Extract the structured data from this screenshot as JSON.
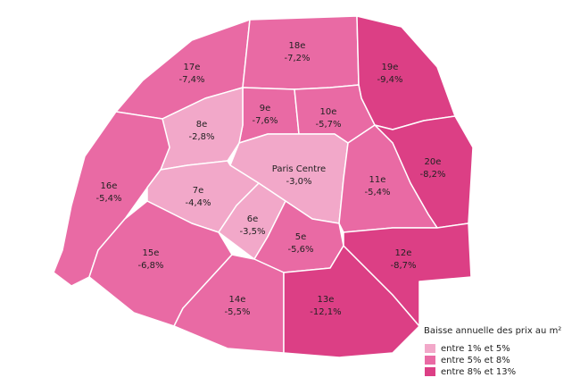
{
  "districts": [
    {
      "name": "17e",
      "change": "-7,4%"
    },
    {
      "name": "18e",
      "change": "-7,2%"
    },
    {
      "name": "19e",
      "change": "-9,4%"
    },
    {
      "name": "20e",
      "change": "-8,2%"
    },
    {
      "name": "9e",
      "change": "-7,6%"
    },
    {
      "name": "10e",
      "change": "-5,7%"
    },
    {
      "name": "8e",
      "change": "-2,8%"
    },
    {
      "name": "Paris Centre",
      "change": "-3,0%"
    },
    {
      "name": "11e",
      "change": "-5,4%"
    },
    {
      "name": "16e",
      "change": "-5,4%"
    },
    {
      "name": "7e",
      "change": "-4,4%"
    },
    {
      "name": "6e",
      "change": "-3,5%"
    },
    {
      "name": "5e",
      "change": "-5,6%"
    },
    {
      "name": "15e",
      "change": "-6,8%"
    },
    {
      "name": "14e",
      "change": "-5,5%"
    },
    {
      "name": "13e",
      "change": "-12,1%"
    },
    {
      "name": "12e",
      "change": "-8,7%"
    }
  ],
  "legend": {
    "title": "Baisse annuelle des prix au m²",
    "items": [
      "entre 1% et 5%",
      "entre 5% et 8%",
      "entre 8% et 13%"
    ]
  }
}
